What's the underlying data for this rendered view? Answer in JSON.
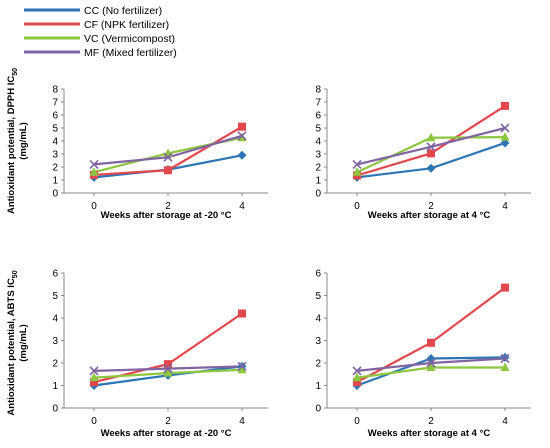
{
  "legend": [
    {
      "series": "CC",
      "label": "CC (No fertilizer)",
      "color": "#2E75B6",
      "marker": "diamond"
    },
    {
      "series": "CF",
      "label": "CF (NPK fertilizer)",
      "color": "#E2474C",
      "marker": "square"
    },
    {
      "series": "VC",
      "label": "VC (Vermicompost)",
      "color": "#8DC63F",
      "marker": "triangle"
    },
    {
      "series": "MF",
      "label": "MF (Mixed fertilizer)",
      "color": "#8064A2",
      "marker": "cross"
    }
  ],
  "ylabels": {
    "dpph": [
      "Antioxidant potential, DPPH IC",
      "50",
      "(mg/mL)"
    ],
    "abts": [
      "Antioxidant potential, ABTS IC",
      "50",
      "(mg/mL)"
    ]
  },
  "chart_data": [
    {
      "type": "line",
      "x": [
        0,
        2,
        4
      ],
      "xlabel": "Weeks after storage at -20 °C",
      "ylim": [
        0,
        8
      ],
      "yticks": [
        0,
        1,
        2,
        3,
        4,
        5,
        6,
        7,
        8
      ],
      "series": [
        {
          "name": "CC",
          "values": [
            1.2,
            1.8,
            2.9
          ]
        },
        {
          "name": "CF",
          "values": [
            1.4,
            1.75,
            5.1
          ]
        },
        {
          "name": "VC",
          "values": [
            1.6,
            3.05,
            4.25
          ]
        },
        {
          "name": "MF",
          "values": [
            2.2,
            2.75,
            4.4
          ]
        }
      ]
    },
    {
      "type": "line",
      "x": [
        0,
        2,
        4
      ],
      "xlabel": "Weeks after storage at 4 °C",
      "ylim": [
        0,
        8
      ],
      "yticks": [
        0,
        1,
        2,
        3,
        4,
        5,
        6,
        7,
        8
      ],
      "series": [
        {
          "name": "CC",
          "values": [
            1.2,
            1.9,
            3.85
          ]
        },
        {
          "name": "CF",
          "values": [
            1.35,
            3.05,
            6.7
          ]
        },
        {
          "name": "VC",
          "values": [
            1.6,
            4.25,
            4.3
          ]
        },
        {
          "name": "MF",
          "values": [
            2.2,
            3.55,
            5.0
          ]
        }
      ]
    },
    {
      "type": "line",
      "x": [
        0,
        2,
        4
      ],
      "xlabel": "Weeks after storage at -20 °C",
      "ylim": [
        0,
        6
      ],
      "yticks": [
        0,
        1,
        2,
        3,
        4,
        5,
        6
      ],
      "series": [
        {
          "name": "CC",
          "values": [
            1.0,
            1.45,
            1.85
          ]
        },
        {
          "name": "CF",
          "values": [
            1.15,
            1.95,
            4.2
          ]
        },
        {
          "name": "VC",
          "values": [
            1.35,
            1.55,
            1.7
          ]
        },
        {
          "name": "MF",
          "values": [
            1.65,
            1.75,
            1.85
          ]
        }
      ]
    },
    {
      "type": "line",
      "x": [
        0,
        2,
        4
      ],
      "xlabel": "Weeks after storage at 4 °C",
      "ylim": [
        0,
        6
      ],
      "yticks": [
        0,
        1,
        2,
        3,
        4,
        5,
        6
      ],
      "series": [
        {
          "name": "CC",
          "values": [
            1.0,
            2.2,
            2.25
          ]
        },
        {
          "name": "CF",
          "values": [
            1.15,
            2.9,
            5.35
          ]
        },
        {
          "name": "VC",
          "values": [
            1.35,
            1.8,
            1.8
          ]
        },
        {
          "name": "MF",
          "values": [
            1.65,
            2.0,
            2.2
          ]
        }
      ]
    }
  ]
}
